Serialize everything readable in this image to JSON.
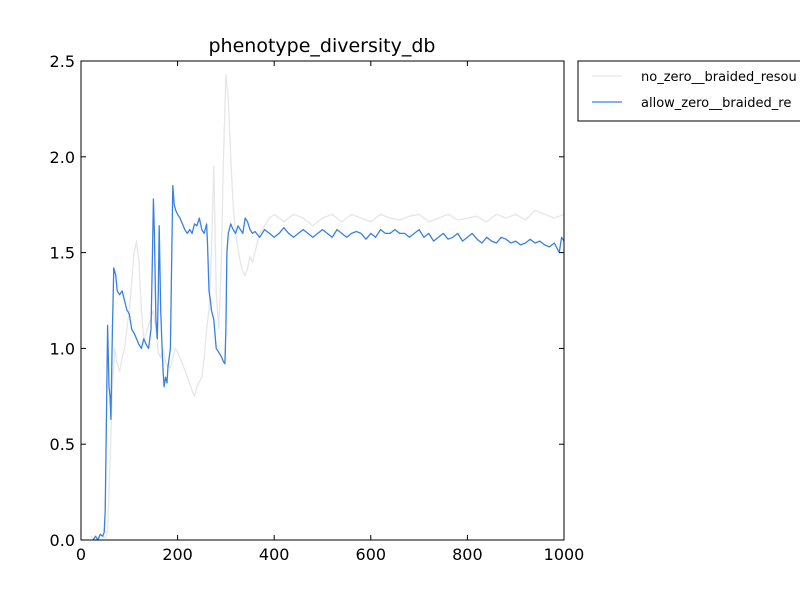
{
  "chart_data": {
    "type": "line",
    "title": "phenotype_diversity_db",
    "xlabel": "",
    "ylabel": "",
    "xlim": [
      0,
      1000
    ],
    "ylim": [
      0.0,
      2.5
    ],
    "xticks": [
      0,
      200,
      400,
      600,
      800,
      1000
    ],
    "yticks": [
      0.0,
      0.5,
      1.0,
      1.5,
      2.0,
      2.5
    ],
    "xtick_labels": [
      "0",
      "200",
      "400",
      "600",
      "800",
      "1000"
    ],
    "ytick_labels": [
      "0.0",
      "0.5",
      "1.0",
      "1.5",
      "2.0",
      "2.5"
    ],
    "grid": false,
    "legend_position": "outside-top-right",
    "series": [
      {
        "name": "no_zero__braided_resou",
        "color": "#e6e6e6",
        "points": [
          [
            20,
            0.02
          ],
          [
            30,
            0.0
          ],
          [
            40,
            0.03
          ],
          [
            50,
            0.01
          ],
          [
            55,
            0.05
          ],
          [
            60,
            0.4
          ],
          [
            65,
            0.8
          ],
          [
            70,
            1.0
          ],
          [
            75,
            0.92
          ],
          [
            80,
            0.88
          ],
          [
            85,
            0.95
          ],
          [
            90,
            1.0
          ],
          [
            100,
            1.2
          ],
          [
            105,
            1.35
          ],
          [
            110,
            1.5
          ],
          [
            115,
            1.56
          ],
          [
            120,
            1.45
          ],
          [
            125,
            1.2
          ],
          [
            130,
            1.05
          ],
          [
            135,
            1.08
          ],
          [
            140,
            1.12
          ],
          [
            150,
            1.2
          ],
          [
            155,
            1.1
          ],
          [
            160,
            0.98
          ],
          [
            165,
            0.95
          ],
          [
            170,
            1.0
          ],
          [
            175,
            0.93
          ],
          [
            180,
            0.9
          ],
          [
            185,
            0.9
          ],
          [
            190,
            0.95
          ],
          [
            195,
            1.0
          ],
          [
            200,
            0.98
          ],
          [
            210,
            0.92
          ],
          [
            220,
            0.85
          ],
          [
            230,
            0.78
          ],
          [
            235,
            0.75
          ],
          [
            240,
            0.8
          ],
          [
            250,
            0.85
          ],
          [
            255,
            0.95
          ],
          [
            260,
            1.1
          ],
          [
            265,
            1.2
          ],
          [
            270,
            1.5
          ],
          [
            275,
            1.95
          ],
          [
            280,
            1.3
          ],
          [
            285,
            1.1
          ],
          [
            290,
            1.4
          ],
          [
            295,
            2.0
          ],
          [
            300,
            2.43
          ],
          [
            305,
            2.3
          ],
          [
            310,
            2.0
          ],
          [
            315,
            1.75
          ],
          [
            320,
            1.6
          ],
          [
            325,
            1.52
          ],
          [
            330,
            1.45
          ],
          [
            335,
            1.4
          ],
          [
            340,
            1.38
          ],
          [
            345,
            1.42
          ],
          [
            350,
            1.48
          ],
          [
            355,
            1.45
          ],
          [
            360,
            1.5
          ],
          [
            365,
            1.55
          ],
          [
            370,
            1.6
          ],
          [
            380,
            1.64
          ],
          [
            390,
            1.68
          ],
          [
            400,
            1.7
          ],
          [
            420,
            1.66
          ],
          [
            440,
            1.7
          ],
          [
            460,
            1.68
          ],
          [
            480,
            1.64
          ],
          [
            500,
            1.68
          ],
          [
            520,
            1.7
          ],
          [
            540,
            1.66
          ],
          [
            560,
            1.7
          ],
          [
            580,
            1.68
          ],
          [
            600,
            1.66
          ],
          [
            620,
            1.7
          ],
          [
            640,
            1.68
          ],
          [
            660,
            1.67
          ],
          [
            680,
            1.69
          ],
          [
            700,
            1.7
          ],
          [
            720,
            1.66
          ],
          [
            740,
            1.68
          ],
          [
            760,
            1.7
          ],
          [
            780,
            1.67
          ],
          [
            800,
            1.68
          ],
          [
            820,
            1.69
          ],
          [
            840,
            1.66
          ],
          [
            860,
            1.7
          ],
          [
            880,
            1.68
          ],
          [
            900,
            1.7
          ],
          [
            920,
            1.67
          ],
          [
            940,
            1.72
          ],
          [
            960,
            1.7
          ],
          [
            980,
            1.68
          ],
          [
            1000,
            1.7
          ]
        ]
      },
      {
        "name": "allow_zero__braided_re",
        "color": "#3880e6",
        "points": [
          [
            25,
            0.0
          ],
          [
            30,
            0.02
          ],
          [
            35,
            0.0
          ],
          [
            40,
            0.03
          ],
          [
            45,
            0.02
          ],
          [
            48,
            0.04
          ],
          [
            50,
            0.15
          ],
          [
            52,
            0.5
          ],
          [
            55,
            1.12
          ],
          [
            58,
            0.8
          ],
          [
            60,
            0.75
          ],
          [
            62,
            0.63
          ],
          [
            65,
            1.1
          ],
          [
            68,
            1.42
          ],
          [
            72,
            1.38
          ],
          [
            75,
            1.3
          ],
          [
            80,
            1.28
          ],
          [
            85,
            1.3
          ],
          [
            90,
            1.25
          ],
          [
            95,
            1.2
          ],
          [
            100,
            1.18
          ],
          [
            105,
            1.1
          ],
          [
            110,
            1.08
          ],
          [
            115,
            1.05
          ],
          [
            120,
            1.02
          ],
          [
            125,
            1.0
          ],
          [
            130,
            1.05
          ],
          [
            135,
            1.02
          ],
          [
            140,
            1.0
          ],
          [
            145,
            1.1
          ],
          [
            148,
            1.5
          ],
          [
            150,
            1.78
          ],
          [
            152,
            1.6
          ],
          [
            155,
            1.15
          ],
          [
            158,
            1.05
          ],
          [
            160,
            1.3
          ],
          [
            162,
            1.64
          ],
          [
            165,
            1.2
          ],
          [
            168,
            1.0
          ],
          [
            170,
            0.88
          ],
          [
            172,
            0.8
          ],
          [
            175,
            0.85
          ],
          [
            178,
            0.82
          ],
          [
            180,
            0.9
          ],
          [
            185,
            1.0
          ],
          [
            188,
            1.5
          ],
          [
            190,
            1.85
          ],
          [
            193,
            1.75
          ],
          [
            196,
            1.72
          ],
          [
            200,
            1.7
          ],
          [
            205,
            1.68
          ],
          [
            210,
            1.65
          ],
          [
            215,
            1.62
          ],
          [
            220,
            1.6
          ],
          [
            225,
            1.62
          ],
          [
            230,
            1.6
          ],
          [
            235,
            1.65
          ],
          [
            240,
            1.64
          ],
          [
            245,
            1.68
          ],
          [
            250,
            1.62
          ],
          [
            255,
            1.6
          ],
          [
            260,
            1.65
          ],
          [
            262,
            1.55
          ],
          [
            265,
            1.3
          ],
          [
            268,
            1.25
          ],
          [
            270,
            1.2
          ],
          [
            275,
            1.15
          ],
          [
            280,
            1.0
          ],
          [
            285,
            0.98
          ],
          [
            290,
            0.96
          ],
          [
            295,
            0.93
          ],
          [
            298,
            0.92
          ],
          [
            300,
            1.1
          ],
          [
            302,
            1.5
          ],
          [
            305,
            1.6
          ],
          [
            310,
            1.65
          ],
          [
            315,
            1.62
          ],
          [
            320,
            1.6
          ],
          [
            325,
            1.64
          ],
          [
            330,
            1.62
          ],
          [
            335,
            1.6
          ],
          [
            340,
            1.68
          ],
          [
            345,
            1.66
          ],
          [
            350,
            1.62
          ],
          [
            355,
            1.6
          ],
          [
            360,
            1.61
          ],
          [
            370,
            1.58
          ],
          [
            380,
            1.62
          ],
          [
            390,
            1.6
          ],
          [
            400,
            1.58
          ],
          [
            410,
            1.6
          ],
          [
            420,
            1.63
          ],
          [
            430,
            1.6
          ],
          [
            440,
            1.58
          ],
          [
            450,
            1.6
          ],
          [
            460,
            1.62
          ],
          [
            470,
            1.6
          ],
          [
            480,
            1.58
          ],
          [
            490,
            1.6
          ],
          [
            500,
            1.62
          ],
          [
            510,
            1.6
          ],
          [
            520,
            1.58
          ],
          [
            530,
            1.62
          ],
          [
            540,
            1.6
          ],
          [
            550,
            1.58
          ],
          [
            560,
            1.6
          ],
          [
            570,
            1.61
          ],
          [
            580,
            1.6
          ],
          [
            590,
            1.57
          ],
          [
            600,
            1.6
          ],
          [
            610,
            1.58
          ],
          [
            620,
            1.62
          ],
          [
            630,
            1.6
          ],
          [
            640,
            1.6
          ],
          [
            650,
            1.62
          ],
          [
            660,
            1.6
          ],
          [
            670,
            1.6
          ],
          [
            680,
            1.58
          ],
          [
            690,
            1.6
          ],
          [
            700,
            1.62
          ],
          [
            710,
            1.58
          ],
          [
            720,
            1.6
          ],
          [
            730,
            1.56
          ],
          [
            740,
            1.58
          ],
          [
            750,
            1.6
          ],
          [
            760,
            1.57
          ],
          [
            770,
            1.58
          ],
          [
            780,
            1.6
          ],
          [
            790,
            1.56
          ],
          [
            800,
            1.58
          ],
          [
            810,
            1.6
          ],
          [
            820,
            1.57
          ],
          [
            830,
            1.55
          ],
          [
            840,
            1.58
          ],
          [
            850,
            1.56
          ],
          [
            860,
            1.55
          ],
          [
            870,
            1.58
          ],
          [
            880,
            1.57
          ],
          [
            890,
            1.55
          ],
          [
            900,
            1.56
          ],
          [
            910,
            1.54
          ],
          [
            920,
            1.55
          ],
          [
            930,
            1.57
          ],
          [
            940,
            1.55
          ],
          [
            950,
            1.56
          ],
          [
            960,
            1.54
          ],
          [
            970,
            1.53
          ],
          [
            980,
            1.55
          ],
          [
            990,
            1.5
          ],
          [
            995,
            1.58
          ],
          [
            1000,
            1.56
          ]
        ]
      }
    ]
  }
}
